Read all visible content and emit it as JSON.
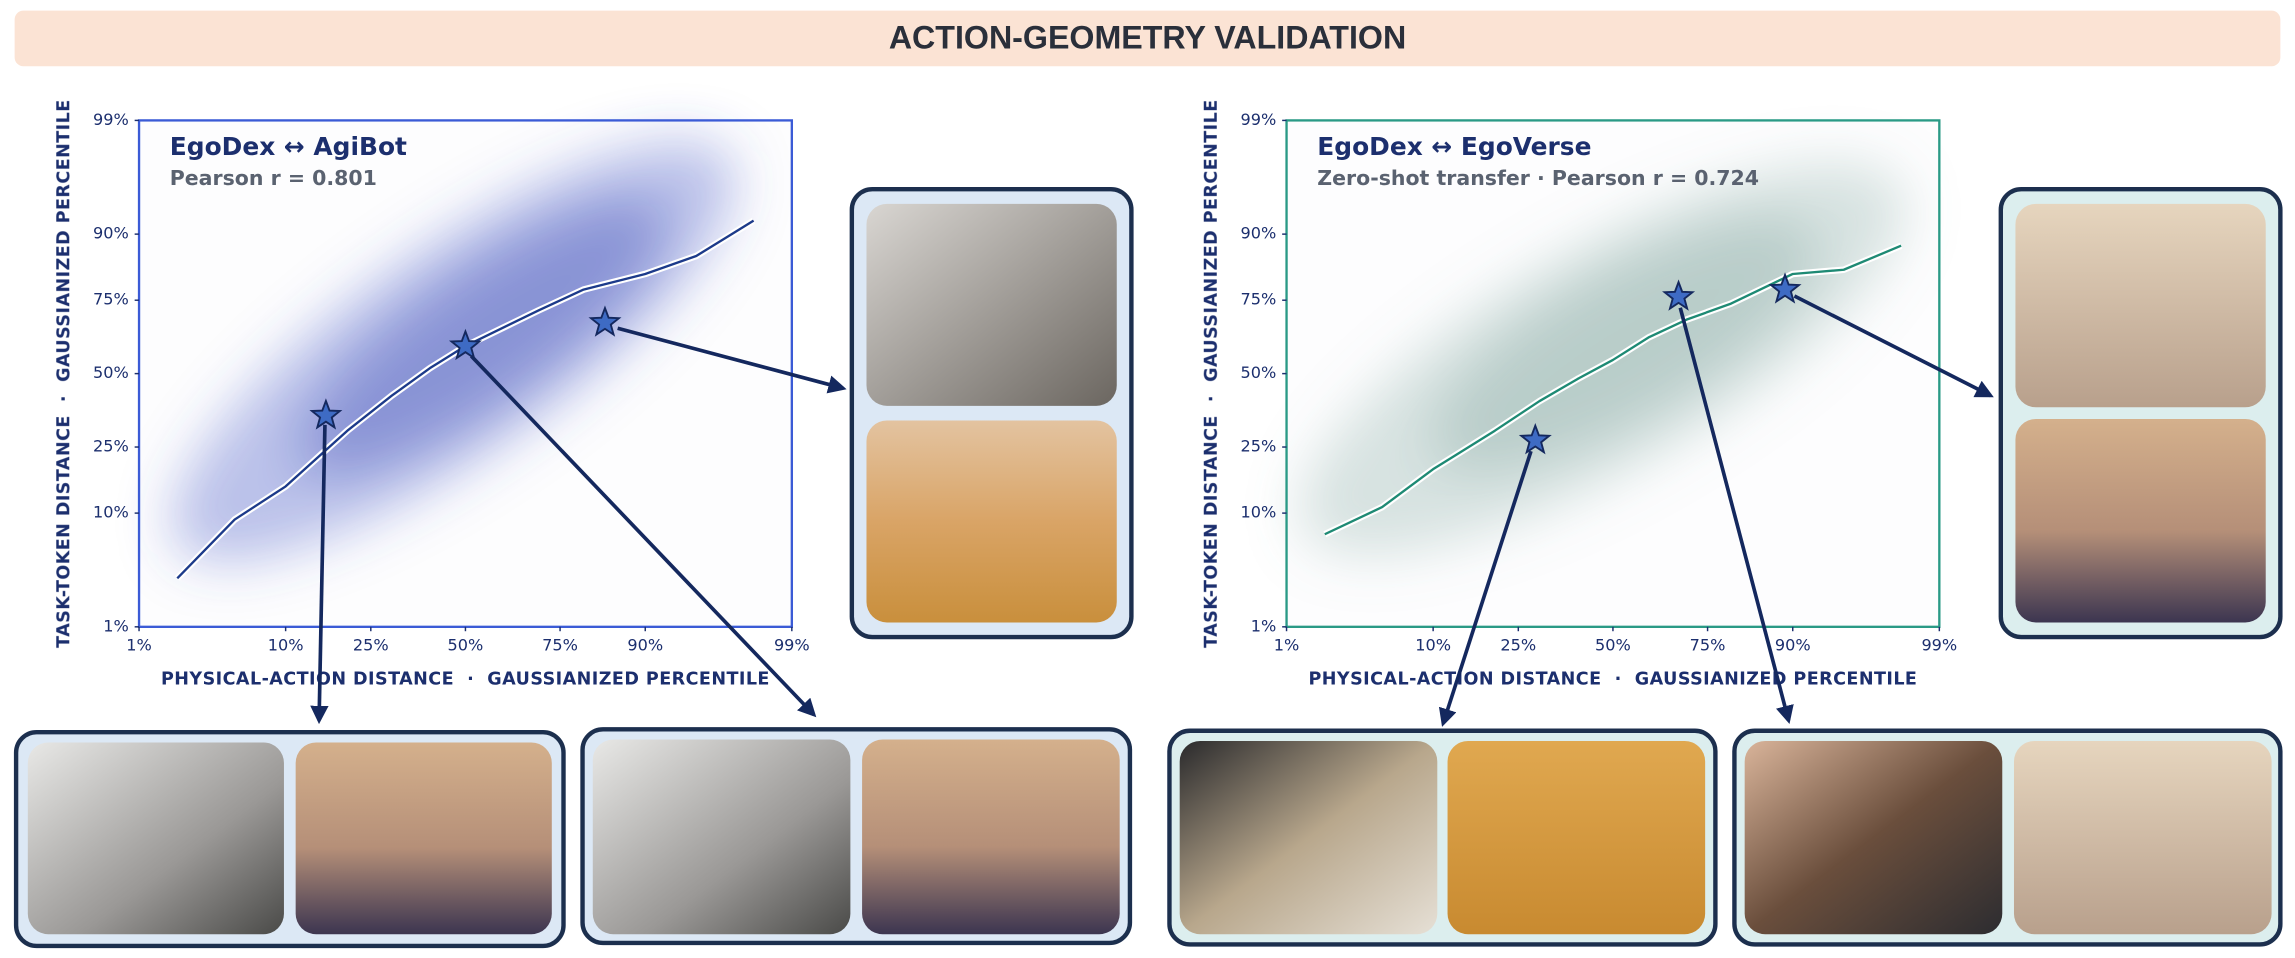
{
  "title": "ACTION-GEOMETRY VALIDATION",
  "chart_data": [
    {
      "type": "line",
      "title": "EgoDex ↔ AgiBot",
      "subtitle": "Pearson r = 0.801",
      "x_label": "PHYSICAL-ACTION DISTANCE  ·  GAUSSIANIZED PERCENTILE",
      "y_label": "TASK-TOKEN DISTANCE  ·  GAUSSIANIZED PERCENTILE",
      "scale": "probit",
      "xlim": [
        1,
        99
      ],
      "ylim": [
        1,
        99
      ],
      "xticks": [
        {
          "value": 1,
          "label": "1%"
        },
        {
          "value": 10,
          "label": "10%"
        },
        {
          "value": 25,
          "label": "25%"
        },
        {
          "value": 50,
          "label": "50%"
        },
        {
          "value": 75,
          "label": "75%"
        },
        {
          "value": 90,
          "label": "90%"
        },
        {
          "value": 99,
          "label": "99%"
        }
      ],
      "yticks": [
        {
          "value": 1,
          "label": "1%"
        },
        {
          "value": 10,
          "label": "10%"
        },
        {
          "value": 25,
          "label": "25%"
        },
        {
          "value": 50,
          "label": "50%"
        },
        {
          "value": 75,
          "label": "75%"
        },
        {
          "value": 90,
          "label": "90%"
        },
        {
          "value": 99,
          "label": "99%"
        }
      ],
      "frame_color": "#3b5bd6",
      "point_color": "#3b4fc4",
      "series": [
        {
          "color": "#1c3a8a",
          "x": [
            2,
            5,
            10,
            20,
            30,
            40,
            50,
            60,
            70,
            80,
            90,
            95,
            98
          ],
          "values": [
            3,
            9,
            15,
            30,
            42,
            52,
            60,
            66,
            72,
            78,
            82,
            86,
            92
          ]
        }
      ],
      "highlights": {
        "color": "#3e6bc4",
        "x": [
          16,
          50,
          84
        ],
        "y": [
          35,
          60,
          68
        ]
      }
    },
    {
      "type": "line",
      "title": "EgoDex ↔ EgoVerse",
      "subtitle": "Zero-shot transfer · Pearson r = 0.724",
      "x_label": "PHYSICAL-ACTION DISTANCE  ·  GAUSSIANIZED PERCENTILE",
      "y_label": "TASK-TOKEN DISTANCE  ·  GAUSSIANIZED PERCENTILE",
      "scale": "probit",
      "xlim": [
        1,
        99
      ],
      "ylim": [
        1,
        99
      ],
      "xticks": [
        {
          "value": 1,
          "label": "1%"
        },
        {
          "value": 10,
          "label": "10%"
        },
        {
          "value": 25,
          "label": "25%"
        },
        {
          "value": 50,
          "label": "50%"
        },
        {
          "value": 75,
          "label": "75%"
        },
        {
          "value": 90,
          "label": "90%"
        },
        {
          "value": 99,
          "label": "99%"
        }
      ],
      "yticks": [
        {
          "value": 1,
          "label": "1%"
        },
        {
          "value": 10,
          "label": "10%"
        },
        {
          "value": 25,
          "label": "25%"
        },
        {
          "value": 50,
          "label": "50%"
        },
        {
          "value": 75,
          "label": "75%"
        },
        {
          "value": 90,
          "label": "90%"
        },
        {
          "value": 99,
          "label": "99%"
        }
      ],
      "frame_color": "#2a9a86",
      "point_color": "#6f9a90",
      "series": [
        {
          "color": "#1e8a74",
          "x": [
            2,
            5,
            10,
            20,
            30,
            40,
            50,
            60,
            70,
            80,
            90,
            95,
            98
          ],
          "values": [
            7,
            11,
            19,
            30,
            40,
            48,
            55,
            63,
            69,
            74,
            82,
            83,
            88
          ]
        }
      ],
      "highlights": {
        "color": "#3e6bc4",
        "x": [
          29,
          68,
          89
        ],
        "y": [
          27,
          76,
          78
        ]
      }
    }
  ]
}
